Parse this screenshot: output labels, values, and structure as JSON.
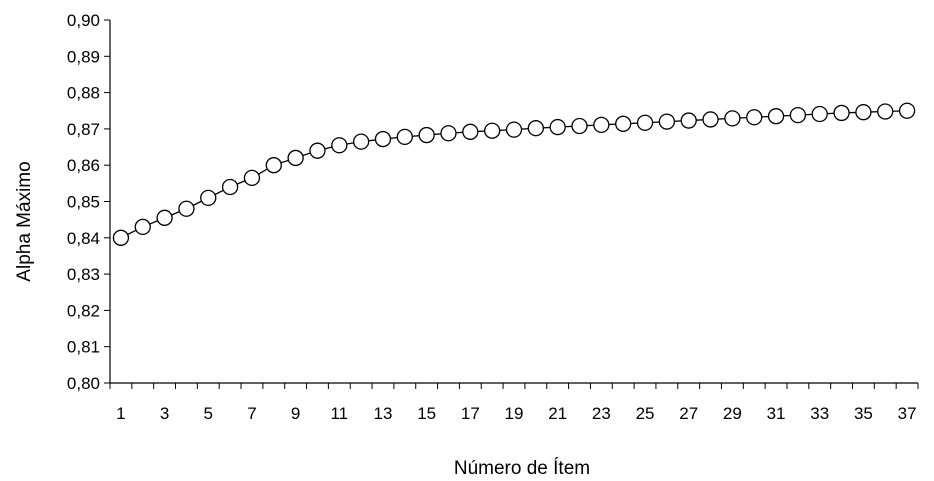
{
  "chart_data": {
    "type": "line",
    "title": "",
    "xlabel": "Número de Ítem",
    "ylabel": "Alpha Máximo",
    "x": [
      1,
      2,
      3,
      4,
      5,
      6,
      7,
      8,
      9,
      10,
      11,
      12,
      13,
      14,
      15,
      16,
      17,
      18,
      19,
      20,
      21,
      22,
      23,
      24,
      25,
      26,
      27,
      28,
      29,
      30,
      31,
      32,
      33,
      34,
      35,
      36,
      37
    ],
    "series": [
      {
        "name": "",
        "values": [
          0.84,
          0.843,
          0.8455,
          0.848,
          0.851,
          0.854,
          0.8565,
          0.86,
          0.862,
          0.864,
          0.8655,
          0.8665,
          0.8672,
          0.8678,
          0.8683,
          0.8688,
          0.8692,
          0.8695,
          0.8698,
          0.8702,
          0.8705,
          0.8708,
          0.8711,
          0.8714,
          0.8717,
          0.872,
          0.8723,
          0.8726,
          0.8729,
          0.8732,
          0.8735,
          0.8738,
          0.8741,
          0.8744,
          0.8746,
          0.8748,
          0.875
        ]
      }
    ],
    "ylim": [
      0.8,
      0.9
    ],
    "yticks": [
      0.8,
      0.81,
      0.82,
      0.83,
      0.84,
      0.85,
      0.86,
      0.87,
      0.88,
      0.89,
      0.9
    ],
    "ytick_labels": [
      "0,80",
      "0,81",
      "0,82",
      "0,83",
      "0,84",
      "0,85",
      "0,86",
      "0,87",
      "0,88",
      "0,89",
      "0,90"
    ],
    "xlim": [
      1,
      37
    ],
    "xtick_labels": [
      "1",
      "3",
      "5",
      "7",
      "9",
      "11",
      "13",
      "15",
      "17",
      "19",
      "21",
      "23",
      "25",
      "27",
      "29",
      "31",
      "33",
      "35",
      "37"
    ],
    "xtick_values": [
      1,
      3,
      5,
      7,
      9,
      11,
      13,
      15,
      17,
      19,
      21,
      23,
      25,
      27,
      29,
      31,
      33,
      35,
      37
    ],
    "grid": false,
    "legend": "none",
    "marker": "open-circle",
    "line_color": "#000000"
  }
}
